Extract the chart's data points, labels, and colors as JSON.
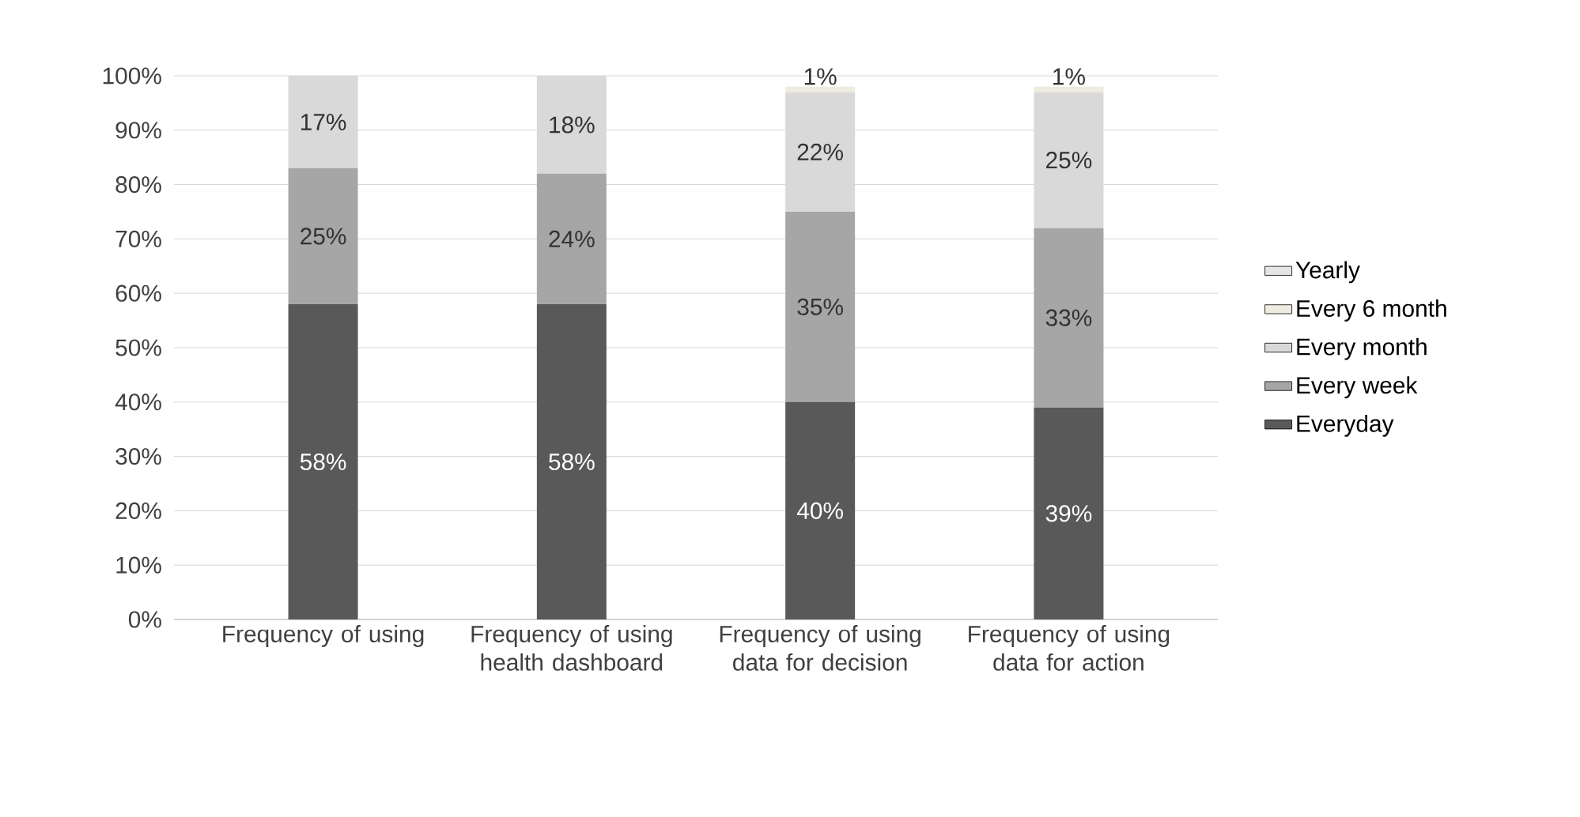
{
  "chart_data": {
    "type": "bar",
    "stacked": true,
    "categories": [
      "Frequency of using",
      "Frequency of using  health dashboard",
      "Frequency of using data for decision",
      "Frequency of using data for action"
    ],
    "series": [
      {
        "name": "Everyday",
        "color": "#595959",
        "values": [
          58,
          58,
          40,
          39
        ],
        "value_labels": [
          "58%",
          "58%",
          "40%",
          "39%"
        ]
      },
      {
        "name": "Every week",
        "color": "#a6a6a6",
        "values": [
          25,
          24,
          35,
          33
        ],
        "value_labels": [
          "25%",
          "24%",
          "35%",
          "33%"
        ]
      },
      {
        "name": "Every month",
        "color": "#d9d9d9",
        "values": [
          17,
          18,
          22,
          25
        ],
        "value_labels": [
          "17%",
          "18%",
          "22%",
          "25%"
        ]
      },
      {
        "name": "Every 6 month",
        "color": "#eeece1",
        "values": [
          0,
          0,
          1,
          1
        ],
        "value_labels": [
          null,
          null,
          "1%",
          "1%"
        ]
      },
      {
        "name": "Yearly",
        "color": "#e7e6e6",
        "values": [
          0,
          0,
          0,
          0
        ],
        "value_labels": [
          null,
          null,
          null,
          null
        ]
      }
    ],
    "ylim": [
      0,
      100
    ],
    "yticks": [
      {
        "value": 0,
        "label": "0%"
      },
      {
        "value": 10,
        "label": "10%"
      },
      {
        "value": 20,
        "label": "20%"
      },
      {
        "value": 30,
        "label": "30%"
      },
      {
        "value": 40,
        "label": "40%"
      },
      {
        "value": 50,
        "label": "50%"
      },
      {
        "value": 60,
        "label": "60%"
      },
      {
        "value": 70,
        "label": "70%"
      },
      {
        "value": 80,
        "label": "80%"
      },
      {
        "value": 90,
        "label": "90%"
      },
      {
        "value": 100,
        "label": "100%"
      }
    ],
    "grid": "y",
    "legend": "right"
  }
}
